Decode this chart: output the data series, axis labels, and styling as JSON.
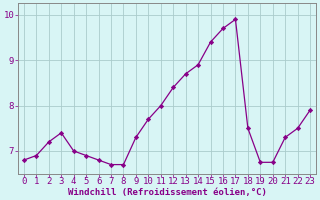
{
  "x_values": [
    0,
    1,
    2,
    3,
    4,
    5,
    6,
    7,
    8,
    9,
    10,
    11,
    12,
    13,
    14,
    15,
    16,
    17,
    18,
    19,
    20,
    21,
    22,
    23
  ],
  "y_values": [
    6.8,
    6.9,
    7.2,
    7.4,
    7.0,
    6.9,
    6.8,
    6.7,
    6.7,
    7.3,
    7.7,
    8.0,
    8.4,
    8.7,
    8.9,
    9.4,
    9.7,
    9.9,
    7.5,
    6.75,
    6.75,
    7.3,
    7.5,
    7.9
  ],
  "line_color": "#880088",
  "marker": "D",
  "marker_size": 2.2,
  "line_width": 0.9,
  "bg_color": "#d8f5f5",
  "grid_color": "#aacccc",
  "axis_label_color": "#880088",
  "tick_color": "#880088",
  "border_color": "#888888",
  "xlabel": "Windchill (Refroidissement éolien,°C)",
  "ylim": [
    6.5,
    10.25
  ],
  "xlim": [
    -0.5,
    23.5
  ],
  "yticks": [
    7,
    8,
    9,
    10
  ],
  "ytick_labels": [
    "7",
    "8",
    "9",
    "10"
  ],
  "tick_fontsize": 6.5,
  "xlabel_fontsize": 6.5
}
